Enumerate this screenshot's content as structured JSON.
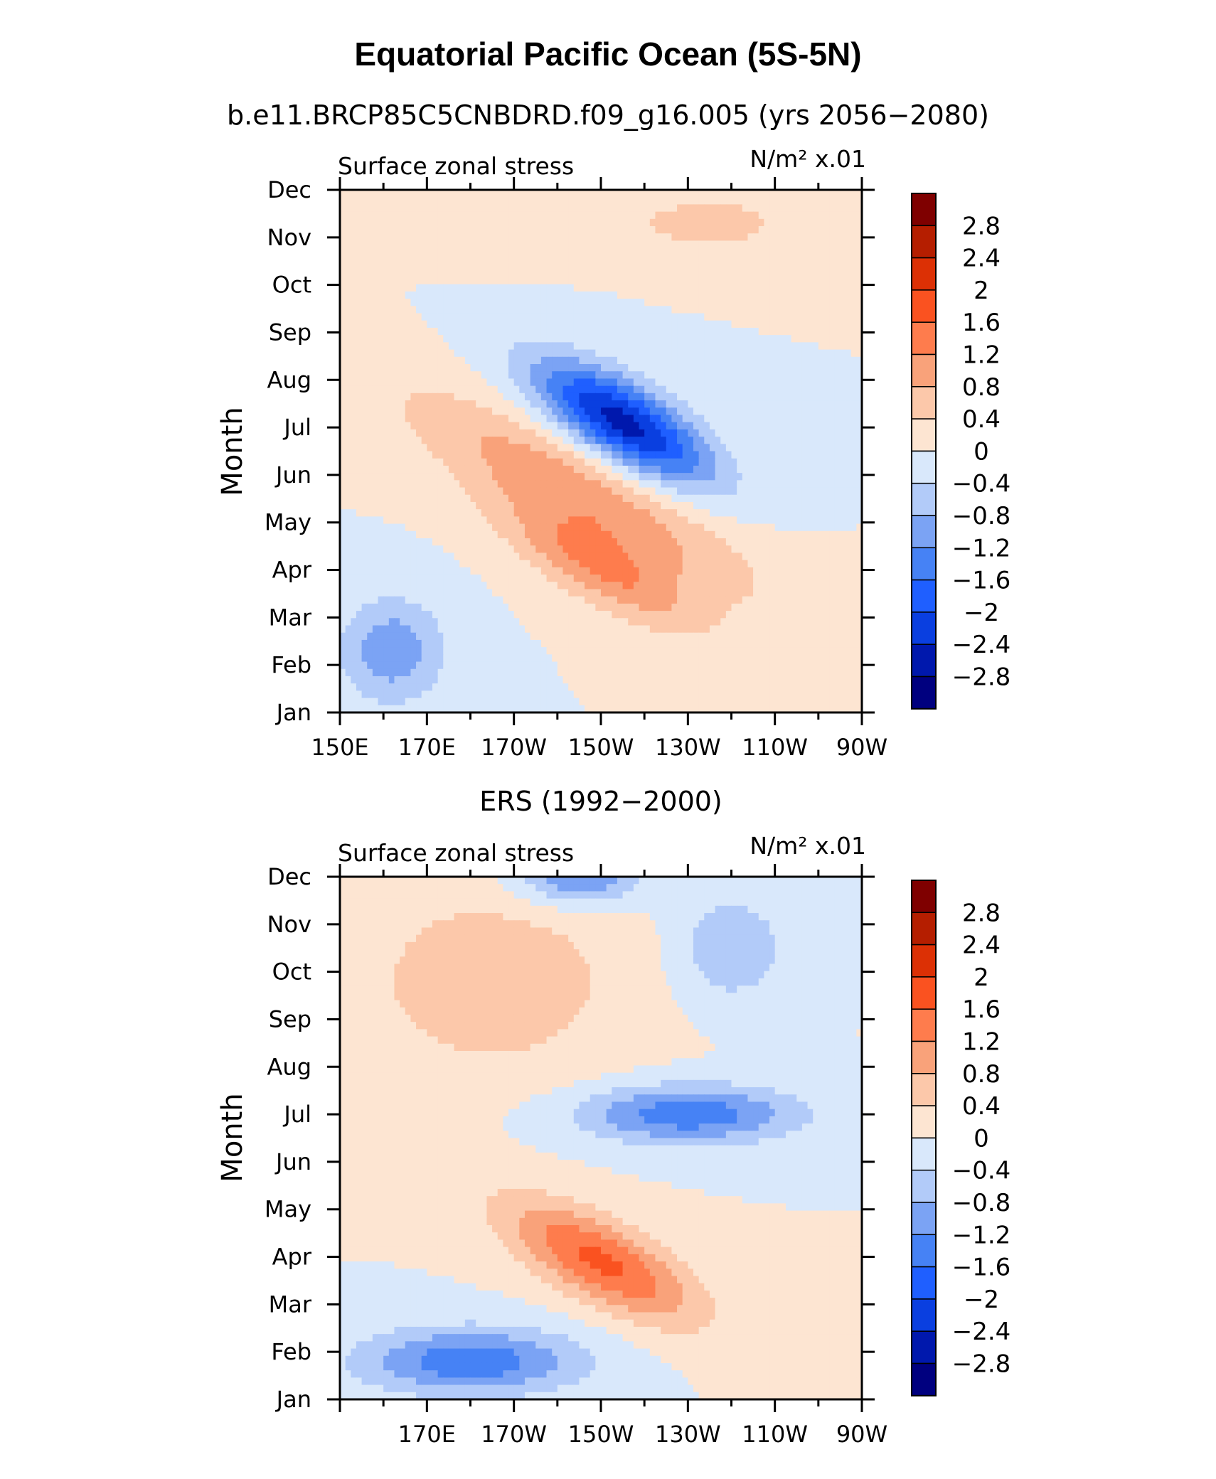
{
  "title": "Equatorial Pacific Ocean (5S-5N)",
  "chart_data": [
    {
      "type": "heatmap",
      "panel_title": "b.e11.BRCP85C5CNBDRD.f09_g16.005 (yrs 2056−2080)",
      "left_annotation": "Surface zonal stress",
      "right_annotation": "N/m² x.01",
      "ylabel": "Month",
      "x_tick_labels": [
        "150E",
        "170E",
        "170W",
        "150W",
        "130W",
        "110W",
        "90W"
      ],
      "y_tick_labels": [
        "Jan",
        "Feb",
        "Mar",
        "Apr",
        "May",
        "Jun",
        "Jul",
        "Aug",
        "Sep",
        "Oct",
        "Nov",
        "Dec"
      ],
      "xlim": [
        150,
        270
      ],
      "ylim": [
        1,
        12
      ],
      "features": [
        {
          "lon": 215,
          "month": 7.1,
          "value": -2.6,
          "spread_lon": 20,
          "spread_month": 0.9,
          "tilt": 0.045
        },
        {
          "lon": 205,
          "month": 5.6,
          "value": 1.1,
          "spread_lon": 40,
          "spread_month": 1.1,
          "tilt": 0.045
        },
        {
          "lon": 210,
          "month": 4.0,
          "value": 1.1,
          "spread_lon": 22,
          "spread_month": 0.8,
          "tilt": 0.045
        },
        {
          "lon": 162,
          "month": 2.3,
          "value": -1.1,
          "spread_lon": 12,
          "spread_month": 1.1,
          "tilt": 0.0
        },
        {
          "lon": 235,
          "month": 11.3,
          "value": 0.6,
          "spread_lon": 20,
          "spread_month": 0.6,
          "tilt": 0.0
        },
        {
          "lon": 180,
          "month": 11.2,
          "value": 0.4,
          "spread_lon": 25,
          "spread_month": 0.6,
          "tilt": 0.0
        }
      ]
    },
    {
      "type": "heatmap",
      "panel_title": "ERS (1992−2000)",
      "left_annotation": "Surface zonal stress",
      "right_annotation": "N/m² x.01",
      "ylabel": "Month",
      "x_tick_labels": [
        "170E",
        "170W",
        "150W",
        "130W",
        "110W",
        "90W"
      ],
      "y_tick_labels": [
        "Jan",
        "Feb",
        "Mar",
        "Apr",
        "May",
        "Jun",
        "Jul",
        "Aug",
        "Sep",
        "Oct",
        "Nov",
        "Dec"
      ],
      "xlim": [
        150,
        270
      ],
      "ylim": [
        1,
        12
      ],
      "features": [
        {
          "lon": 210,
          "month": 3.9,
          "value": 1.7,
          "spread_lon": 22,
          "spread_month": 0.9,
          "tilt": 0.04
        },
        {
          "lon": 230,
          "month": 7.0,
          "value": -1.5,
          "spread_lon": 25,
          "spread_month": 0.6,
          "tilt": 0.0
        },
        {
          "lon": 180,
          "month": 1.8,
          "value": -1.5,
          "spread_lon": 25,
          "spread_month": 0.7,
          "tilt": 0.0
        },
        {
          "lon": 205,
          "month": 12.0,
          "value": -1.3,
          "spread_lon": 14,
          "spread_month": 0.6,
          "tilt": 0.0
        },
        {
          "lon": 240,
          "month": 10.5,
          "value": -0.8,
          "spread_lon": 12,
          "spread_month": 1.1,
          "tilt": 0.0
        },
        {
          "lon": 185,
          "month": 9.8,
          "value": 0.7,
          "spread_lon": 30,
          "spread_month": 2.0,
          "tilt": 0.0
        }
      ]
    }
  ],
  "colorbar": {
    "labels": [
      "2.8",
      "2.4",
      "2",
      "1.6",
      "1.2",
      "0.8",
      "0.4",
      "0",
      "−0.4",
      "−0.8",
      "−1.2",
      "−1.6",
      "−2",
      "−2.4",
      "−2.8"
    ],
    "levels": [
      -2.8,
      -2.4,
      -2.0,
      -1.6,
      -1.2,
      -0.8,
      -0.4,
      0.0,
      0.4,
      0.8,
      1.2,
      1.6,
      2.0,
      2.4,
      2.8
    ],
    "colors": [
      "#00007f",
      "#0018ad",
      "#0a3fe0",
      "#1f5fff",
      "#4682f5",
      "#7ba3f4",
      "#b2cbf9",
      "#d9e8fb",
      "#fde5d2",
      "#fcc8aa",
      "#f9a27a",
      "#fe7c4d",
      "#fa5220",
      "#dc3005",
      "#b51e00",
      "#7f0000"
    ]
  }
}
